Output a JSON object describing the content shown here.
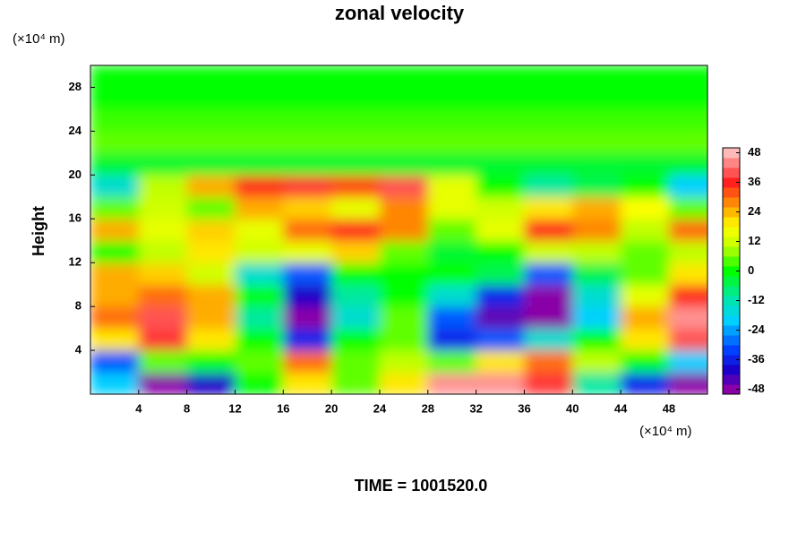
{
  "chart_data": {
    "type": "heatmap",
    "title": "zonal velocity",
    "y_label": "Height",
    "y_unit_label": "(×10⁴ m)",
    "x_unit_label": "(×10⁴ m)",
    "footer": "TIME = 1001520.0",
    "xlim": [
      0,
      51.2
    ],
    "ylim": [
      0,
      30
    ],
    "xticks": [
      4,
      8,
      12,
      16,
      20,
      24,
      28,
      32,
      36,
      40,
      44,
      48
    ],
    "yticks": [
      4,
      8,
      12,
      16,
      20,
      24,
      28
    ],
    "x": [
      2,
      6,
      10,
      14,
      18,
      22,
      26,
      30,
      34,
      38,
      42,
      46,
      50
    ],
    "y": [
      1,
      3,
      5,
      7,
      9,
      11,
      13,
      15,
      17,
      19,
      21,
      23,
      25,
      27,
      29
    ],
    "z": [
      [
        -20,
        -48,
        -40,
        0,
        20,
        5,
        20,
        45,
        45,
        38,
        -10,
        -35,
        -48
      ],
      [
        -30,
        5,
        0,
        5,
        30,
        5,
        10,
        5,
        20,
        30,
        10,
        0,
        -20
      ],
      [
        20,
        38,
        20,
        0,
        -35,
        0,
        5,
        -35,
        -30,
        -15,
        0,
        20,
        40
      ],
      [
        30,
        40,
        25,
        -10,
        -48,
        -15,
        5,
        -30,
        -45,
        -50,
        -20,
        25,
        45
      ],
      [
        25,
        30,
        25,
        0,
        -40,
        -10,
        0,
        -15,
        -35,
        -50,
        -15,
        15,
        35
      ],
      [
        25,
        22,
        12,
        -15,
        -30,
        0,
        0,
        0,
        -5,
        -30,
        -5,
        5,
        20
      ],
      [
        0,
        10,
        20,
        12,
        15,
        22,
        5,
        -3,
        0,
        12,
        10,
        5,
        10
      ],
      [
        25,
        15,
        22,
        15,
        30,
        35,
        28,
        5,
        15,
        35,
        28,
        10,
        30
      ],
      [
        5,
        12,
        5,
        25,
        22,
        15,
        28,
        15,
        12,
        20,
        25,
        18,
        5
      ],
      [
        -15,
        10,
        25,
        35,
        38,
        33,
        40,
        15,
        0,
        -10,
        -5,
        0,
        -20
      ],
      [
        -3,
        -3,
        -3,
        -3,
        -3,
        -3,
        -3,
        -3,
        -3,
        -3,
        -3,
        -3,
        -3
      ],
      [
        5,
        5,
        5,
        5,
        5,
        5,
        5,
        5,
        5,
        5,
        5,
        5,
        5
      ],
      [
        3,
        3,
        3,
        3,
        3,
        3,
        3,
        3,
        3,
        3,
        3,
        3,
        3
      ],
      [
        0,
        0,
        0,
        0,
        0,
        0,
        0,
        0,
        0,
        0,
        0,
        0,
        0
      ],
      [
        0,
        0,
        0,
        0,
        0,
        0,
        0,
        0,
        0,
        0,
        0,
        0,
        0
      ]
    ],
    "colorscale": [
      {
        "value": -48,
        "color": "#8a00a8"
      },
      {
        "value": -40,
        "color": "#1a00c8"
      },
      {
        "value": -32,
        "color": "#0040ff"
      },
      {
        "value": -20,
        "color": "#00d0ff"
      },
      {
        "value": -10,
        "color": "#00e8a0"
      },
      {
        "value": 0,
        "color": "#00ff00"
      },
      {
        "value": 10,
        "color": "#c0ff00"
      },
      {
        "value": 18,
        "color": "#ffff00"
      },
      {
        "value": 26,
        "color": "#ffa000"
      },
      {
        "value": 36,
        "color": "#ff2020"
      },
      {
        "value": 48,
        "color": "#ffb8b8"
      }
    ],
    "colorbar": {
      "lim": [
        -50,
        50
      ],
      "ticks": [
        -48,
        -36,
        -24,
        -12,
        0,
        12,
        24,
        36,
        48
      ]
    }
  }
}
